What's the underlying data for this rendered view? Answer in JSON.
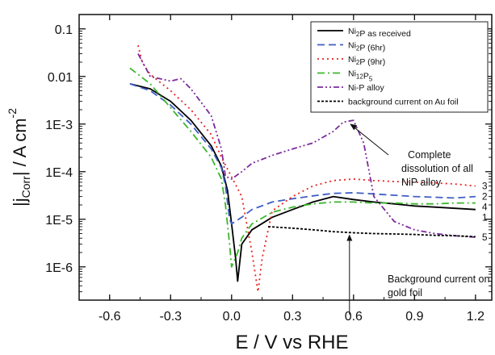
{
  "chart_data": {
    "type": "line",
    "xlabel": "E  /  V vs RHE",
    "ylabel": "|j_Corr| / A cm^-2",
    "xlim": [
      -0.75,
      1.28
    ],
    "ylim": [
      2e-07,
      0.2
    ],
    "yscale": "log",
    "x_ticks": [
      "-0.6",
      "-0.3",
      "0.0",
      "0.3",
      "0.6",
      "0.9",
      "1.2"
    ],
    "y_ticks": [
      "1E-6",
      "1E-5",
      "1E-4",
      "1E-3",
      "0.01",
      "0.1"
    ],
    "legend_position": "top-right",
    "series": [
      {
        "name": "Ni2P as received",
        "color": "#000000",
        "dash": "solid",
        "curve_number": "1",
        "x": [
          -0.5,
          -0.4,
          -0.3,
          -0.2,
          -0.1,
          -0.05,
          -0.02,
          0.0,
          0.02,
          0.03,
          0.05,
          0.1,
          0.2,
          0.3,
          0.4,
          0.5,
          0.6,
          0.7,
          0.8,
          0.9,
          1.0,
          1.1,
          1.2
        ],
        "y": [
          0.007,
          0.0055,
          0.003,
          0.0012,
          0.00035,
          0.00013,
          4e-05,
          8e-06,
          1.5e-06,
          5e-07,
          3e-06,
          6e-06,
          1.1e-05,
          1.6e-05,
          2.3e-05,
          3e-05,
          2.6e-05,
          2.3e-05,
          2.1e-05,
          1.9e-05,
          1.8e-05,
          1.7e-05,
          1.6e-05
        ]
      },
      {
        "name": "Ni2P (6hr)",
        "color": "#3f5fc6",
        "dash": "dashed",
        "curve_number": "2",
        "x": [
          -0.5,
          -0.4,
          -0.3,
          -0.2,
          -0.1,
          -0.05,
          -0.03,
          -0.01,
          0.0,
          0.05,
          0.1,
          0.2,
          0.3,
          0.4,
          0.5,
          0.6,
          0.7,
          0.8,
          0.9,
          1.0,
          1.1,
          1.2
        ],
        "y": [
          0.007,
          0.005,
          0.0025,
          0.001,
          0.0003,
          0.00012,
          5e-05,
          1e-05,
          8e-06,
          1.1e-05,
          1.6e-05,
          2.3e-05,
          2.7e-05,
          3.1e-05,
          3.5e-05,
          3.6e-05,
          3.4e-05,
          3.2e-05,
          3e-05,
          2.9e-05,
          2.8e-05,
          3e-05
        ]
      },
      {
        "name": "Ni2P (9hr)",
        "color": "#e8221f",
        "dash": "dotted",
        "curve_number": "3",
        "x": [
          -0.46,
          -0.44,
          -0.4,
          -0.3,
          -0.2,
          -0.1,
          -0.05,
          0.05,
          0.1,
          0.13,
          0.15,
          0.2,
          0.3,
          0.4,
          0.5,
          0.6,
          0.7,
          0.8,
          0.9,
          1.0,
          1.1,
          1.2
        ],
        "y": [
          0.045,
          0.02,
          0.011,
          0.005,
          0.002,
          0.0006,
          0.0002,
          3e-05,
          2e-06,
          3e-07,
          1.5e-06,
          1.5e-05,
          3e-05,
          5e-05,
          6.5e-05,
          7e-05,
          6.5e-05,
          6.2e-05,
          6e-05,
          5.8e-05,
          5.5e-05,
          5e-05
        ]
      },
      {
        "name": "Ni12P5",
        "color": "#3cb62c",
        "dash": "dashdot",
        "curve_number": "4",
        "x": [
          -0.5,
          -0.4,
          -0.3,
          -0.2,
          -0.1,
          -0.05,
          -0.03,
          -0.01,
          0.0,
          0.03,
          0.05,
          0.1,
          0.2,
          0.3,
          0.4,
          0.5,
          0.6,
          0.7,
          0.8,
          0.9,
          1.0,
          1.1,
          1.2
        ],
        "y": [
          0.015,
          0.007,
          0.0022,
          0.0007,
          0.0002,
          7e-05,
          2e-05,
          3e-06,
          1e-06,
          2e-06,
          4e-06,
          8e-06,
          1.4e-05,
          1.8e-05,
          2.1e-05,
          2.3e-05,
          2.3e-05,
          2.2e-05,
          2.2e-05,
          2.1e-05,
          2.1e-05,
          2.2e-05,
          2.2e-05
        ]
      },
      {
        "name": "Ni-P alloy",
        "color": "#7b2b9e",
        "dash": "dashdotdot",
        "curve_number": "5",
        "x": [
          -0.46,
          -0.4,
          -0.3,
          -0.25,
          -0.2,
          -0.1,
          -0.05,
          -0.03,
          0.0,
          0.05,
          0.1,
          0.2,
          0.3,
          0.4,
          0.5,
          0.55,
          0.6,
          0.65,
          0.7,
          0.8,
          0.9,
          1.0,
          1.1,
          1.2
        ],
        "y": [
          0.03,
          0.01,
          0.008,
          0.009,
          0.0055,
          0.0015,
          0.0003,
          8e-05,
          7e-05,
          0.0001,
          0.00015,
          0.00022,
          0.0003,
          0.0004,
          0.0007,
          0.0011,
          0.0012,
          0.0004,
          3e-05,
          9e-06,
          6e-06,
          5e-06,
          4.5e-06,
          4.2e-06
        ]
      },
      {
        "name": "background current on Au foil",
        "color": "#000000",
        "dash": "shortdash",
        "curve_number": "",
        "x": [
          0.18,
          0.3,
          0.4,
          0.5,
          0.6,
          0.7,
          0.8,
          0.9,
          1.0,
          1.1,
          1.2
        ],
        "y": [
          7e-06,
          6.5e-06,
          6e-06,
          5.5e-06,
          5.2e-06,
          5e-06,
          4.9e-06,
          4.8e-06,
          4.6e-06,
          4.5e-06,
          4.3e-06
        ]
      }
    ],
    "legend_labels": [
      {
        "pre": "Ni",
        "sub": "2",
        "post": "P as received"
      },
      {
        "pre": "Ni",
        "sub": "2",
        "post": "P (6hr)"
      },
      {
        "pre": "Ni",
        "sub": "2",
        "post": "P (9hr)"
      },
      {
        "pre": "Ni",
        "sub": "12",
        "post": "P",
        "sub2": "5"
      },
      {
        "pre": "Ni-P alloy"
      },
      {
        "pre": "background current on Au foil"
      }
    ],
    "annotations": [
      {
        "lines": [
          "Complete",
          "dissolution of all",
          "NiP alloy"
        ],
        "target_x": 0.57,
        "target_y": 0.0011
      },
      {
        "lines": [
          "Background current on",
          "gold foil"
        ],
        "target_x": 0.58,
        "target_y": 5.2e-06
      }
    ]
  }
}
